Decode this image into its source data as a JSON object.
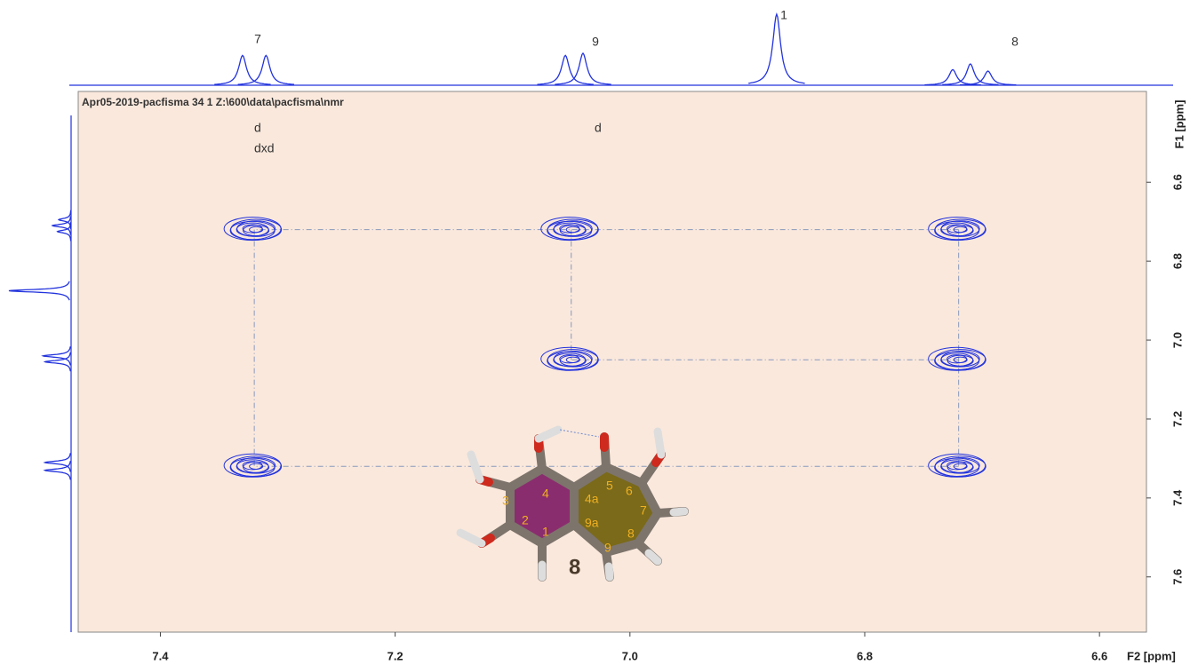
{
  "chart_data": {
    "type": "cosy",
    "title": "Apr05-2019-pacfisma  34  1  Z:\\600\\data\\pacfisma\\nmr",
    "x_label": "F2 [ppm]",
    "y_label": "F1 [ppm]",
    "xlim": [
      7.47,
      6.56
    ],
    "ylim": [
      6.37,
      7.74
    ],
    "xticks": [
      7.4,
      7.2,
      {
        "value": 7,
        "label": "7.0"
      },
      6.8,
      6.6
    ],
    "yticks": [
      6.6,
      6.8,
      {
        "value": 7,
        "label": "7.0"
      },
      7.2,
      7.4,
      7.6
    ],
    "grid": false,
    "color": "#2233dd",
    "peaks": {
      "x": [
        7.32,
        7.05,
        6.72,
        7.32,
        6.72,
        7.05,
        6.72
      ],
      "y": [
        6.72,
        6.72,
        6.72,
        7.32,
        7.32,
        7.05,
        7.05
      ]
    },
    "spectrum": {
      "ppm": [
        7.33,
        7.31,
        7.055,
        7.04,
        6.875,
        6.725,
        6.71,
        6.695
      ],
      "height": [
        0.42,
        0.42,
        0.42,
        0.45,
        1.0,
        0.22,
        0.3,
        0.2
      ]
    },
    "peak_labels": [
      "7",
      "9",
      "1",
      "8"
    ],
    "annotations": [
      "d",
      "dxd",
      "d"
    ],
    "molecule": {
      "atom_labels": [
        "3",
        "4",
        "4a",
        "5",
        "6",
        "2",
        "9a",
        "7",
        "1",
        "8",
        "9"
      ],
      "compound": "8"
    }
  }
}
